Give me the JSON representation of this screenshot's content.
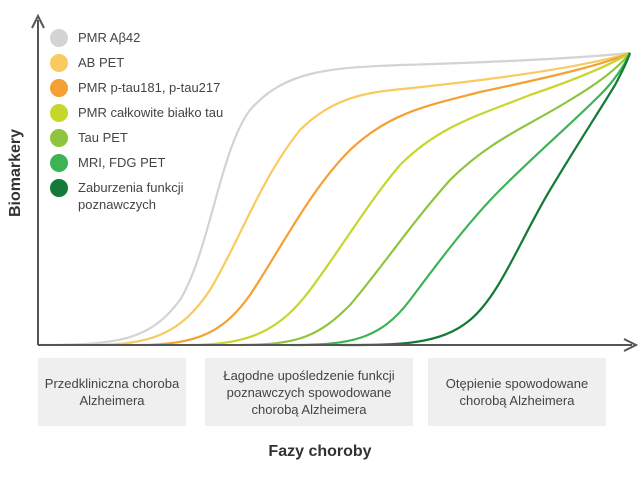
{
  "y_axis_label": "Biomarkery",
  "x_axis_label": "Fazy choroby",
  "legend": [
    {
      "label": "PMR Aβ42",
      "color": "#d3d3d3"
    },
    {
      "label": "AB PET",
      "color": "#f9ca5f"
    },
    {
      "label": "PMR p-tau181, p-tau217",
      "color": "#f4a032"
    },
    {
      "label": "PMR całkowite białko tau",
      "color": "#c7d62a"
    },
    {
      "label": "Tau PET",
      "color": "#8fc43f"
    },
    {
      "label": "MRI, FDG PET",
      "color": "#3cb455"
    },
    {
      "label": "Zaburzenia funkcji poznawczych",
      "color": "#137a38"
    }
  ],
  "phases": [
    {
      "label": "Przedkliniczna choroba Alzheimera"
    },
    {
      "label": "Łagodne upośledzenie funkcji poznawczych spowodowane chorobą Alzheimera"
    },
    {
      "label": "Otępienie spowodowane chorobą Alzheimera"
    }
  ]
}
